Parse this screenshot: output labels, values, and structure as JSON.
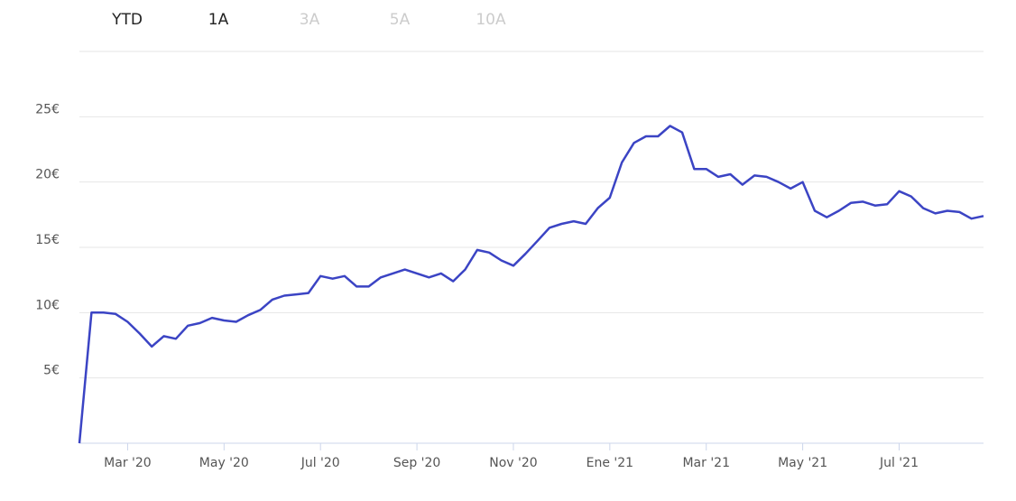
{
  "tabs": [
    {
      "label": "YTD",
      "active": true
    },
    {
      "label": "1A",
      "active": true
    },
    {
      "label": "3A",
      "active": false
    },
    {
      "label": "5A",
      "active": false
    },
    {
      "label": "10A",
      "active": false
    }
  ],
  "chart_data": {
    "type": "line",
    "color": "#3b44c4",
    "categories": [
      null,
      null,
      null,
      null,
      "Mar '20",
      null,
      null,
      null,
      null,
      null,
      null,
      null,
      "May '20",
      null,
      null,
      null,
      null,
      null,
      null,
      null,
      "Jul '20",
      null,
      null,
      null,
      null,
      null,
      null,
      null,
      "Sep '20",
      null,
      null,
      null,
      null,
      null,
      null,
      null,
      "Nov '20",
      null,
      null,
      null,
      null,
      null,
      null,
      null,
      "Ene '21",
      null,
      null,
      null,
      null,
      null,
      null,
      null,
      "Mar '21",
      null,
      null,
      null,
      null,
      null,
      null,
      null,
      "May '21",
      null,
      null,
      null,
      null,
      null,
      null,
      null,
      "Jul '21",
      null,
      null,
      null,
      null,
      null,
      null,
      null
    ],
    "values": [
      0,
      10,
      10,
      9.9,
      9.3,
      8.4,
      7.4,
      8.2,
      8.0,
      9.0,
      9.2,
      9.6,
      9.4,
      9.3,
      9.8,
      10.2,
      11.0,
      11.3,
      11.4,
      11.5,
      12.8,
      12.6,
      12.8,
      12.0,
      12.0,
      12.7,
      13.0,
      13.3,
      13.0,
      12.7,
      13.0,
      12.4,
      13.3,
      14.8,
      14.6,
      14.0,
      13.6,
      14.5,
      15.5,
      16.5,
      16.8,
      17.0,
      16.8,
      18.0,
      18.8,
      21.5,
      23.0,
      23.5,
      23.5,
      24.3,
      23.8,
      21.0,
      21.0,
      20.4,
      20.6,
      19.8,
      20.5,
      20.4,
      20.0,
      19.5,
      20.0,
      17.8,
      17.3,
      17.8,
      18.4,
      18.5,
      18.2,
      18.3,
      19.3,
      18.9,
      18.0,
      17.6,
      17.8,
      17.7,
      17.2,
      17.4
    ],
    "ylim": [
      0,
      30
    ],
    "yticks": [
      {
        "value": 5,
        "label": "5€"
      },
      {
        "value": 10,
        "label": "10€"
      },
      {
        "value": 15,
        "label": "15€"
      },
      {
        "value": 20,
        "label": "20€"
      },
      {
        "value": 25,
        "label": "25€"
      }
    ],
    "grid": true
  }
}
